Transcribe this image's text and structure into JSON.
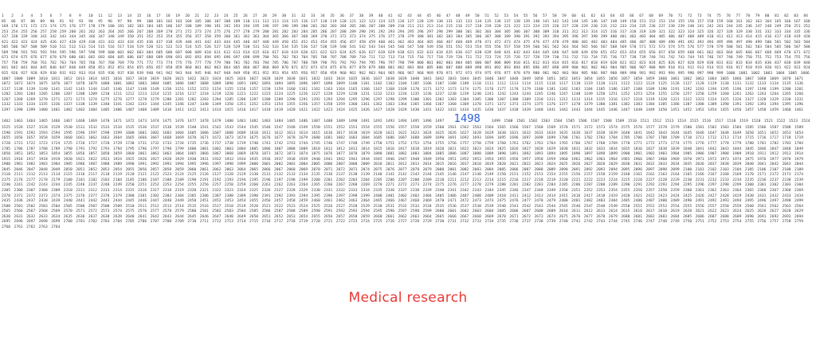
{
  "sequence": {
    "start": 1,
    "end": 2764,
    "number_color": "#3a3a3a"
  },
  "highlight": {
    "value": 1498,
    "label": "1498",
    "color": "#2b5fd9"
  },
  "caption": {
    "text": "Medical research",
    "color": "#ea3a36"
  }
}
